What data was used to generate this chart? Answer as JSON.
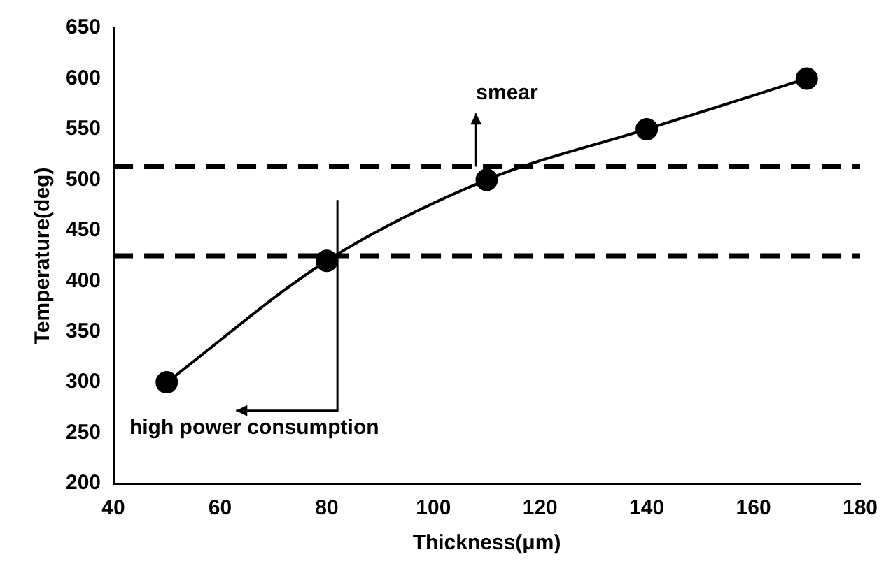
{
  "chart_data": {
    "type": "line",
    "xlabel": "Thickness(μm)",
    "ylabel": "Temperature(deg)",
    "x": [
      50,
      80,
      110,
      140,
      170
    ],
    "series": [
      {
        "type": "line",
        "color": "#000000",
        "values": [
          300,
          420,
          500,
          550,
          600
        ]
      }
    ],
    "xlim": [
      40,
      180
    ],
    "xticks": [
      40,
      60,
      80,
      100,
      120,
      140,
      160,
      180
    ],
    "ylim": [
      200,
      650
    ],
    "yticks": [
      200,
      250,
      300,
      350,
      400,
      450,
      500,
      550,
      600,
      650
    ],
    "grid": false,
    "legend": false,
    "marker": "circle",
    "line_style": "solid",
    "ref_lines": [
      {
        "axis": "y",
        "value": 513,
        "color": "#000000",
        "line_style": "dashed"
      },
      {
        "axis": "y",
        "value": 425,
        "color": "#000000",
        "line_style": "dashed"
      }
    ],
    "annotations": [
      "smear",
      "high power consumption"
    ]
  }
}
